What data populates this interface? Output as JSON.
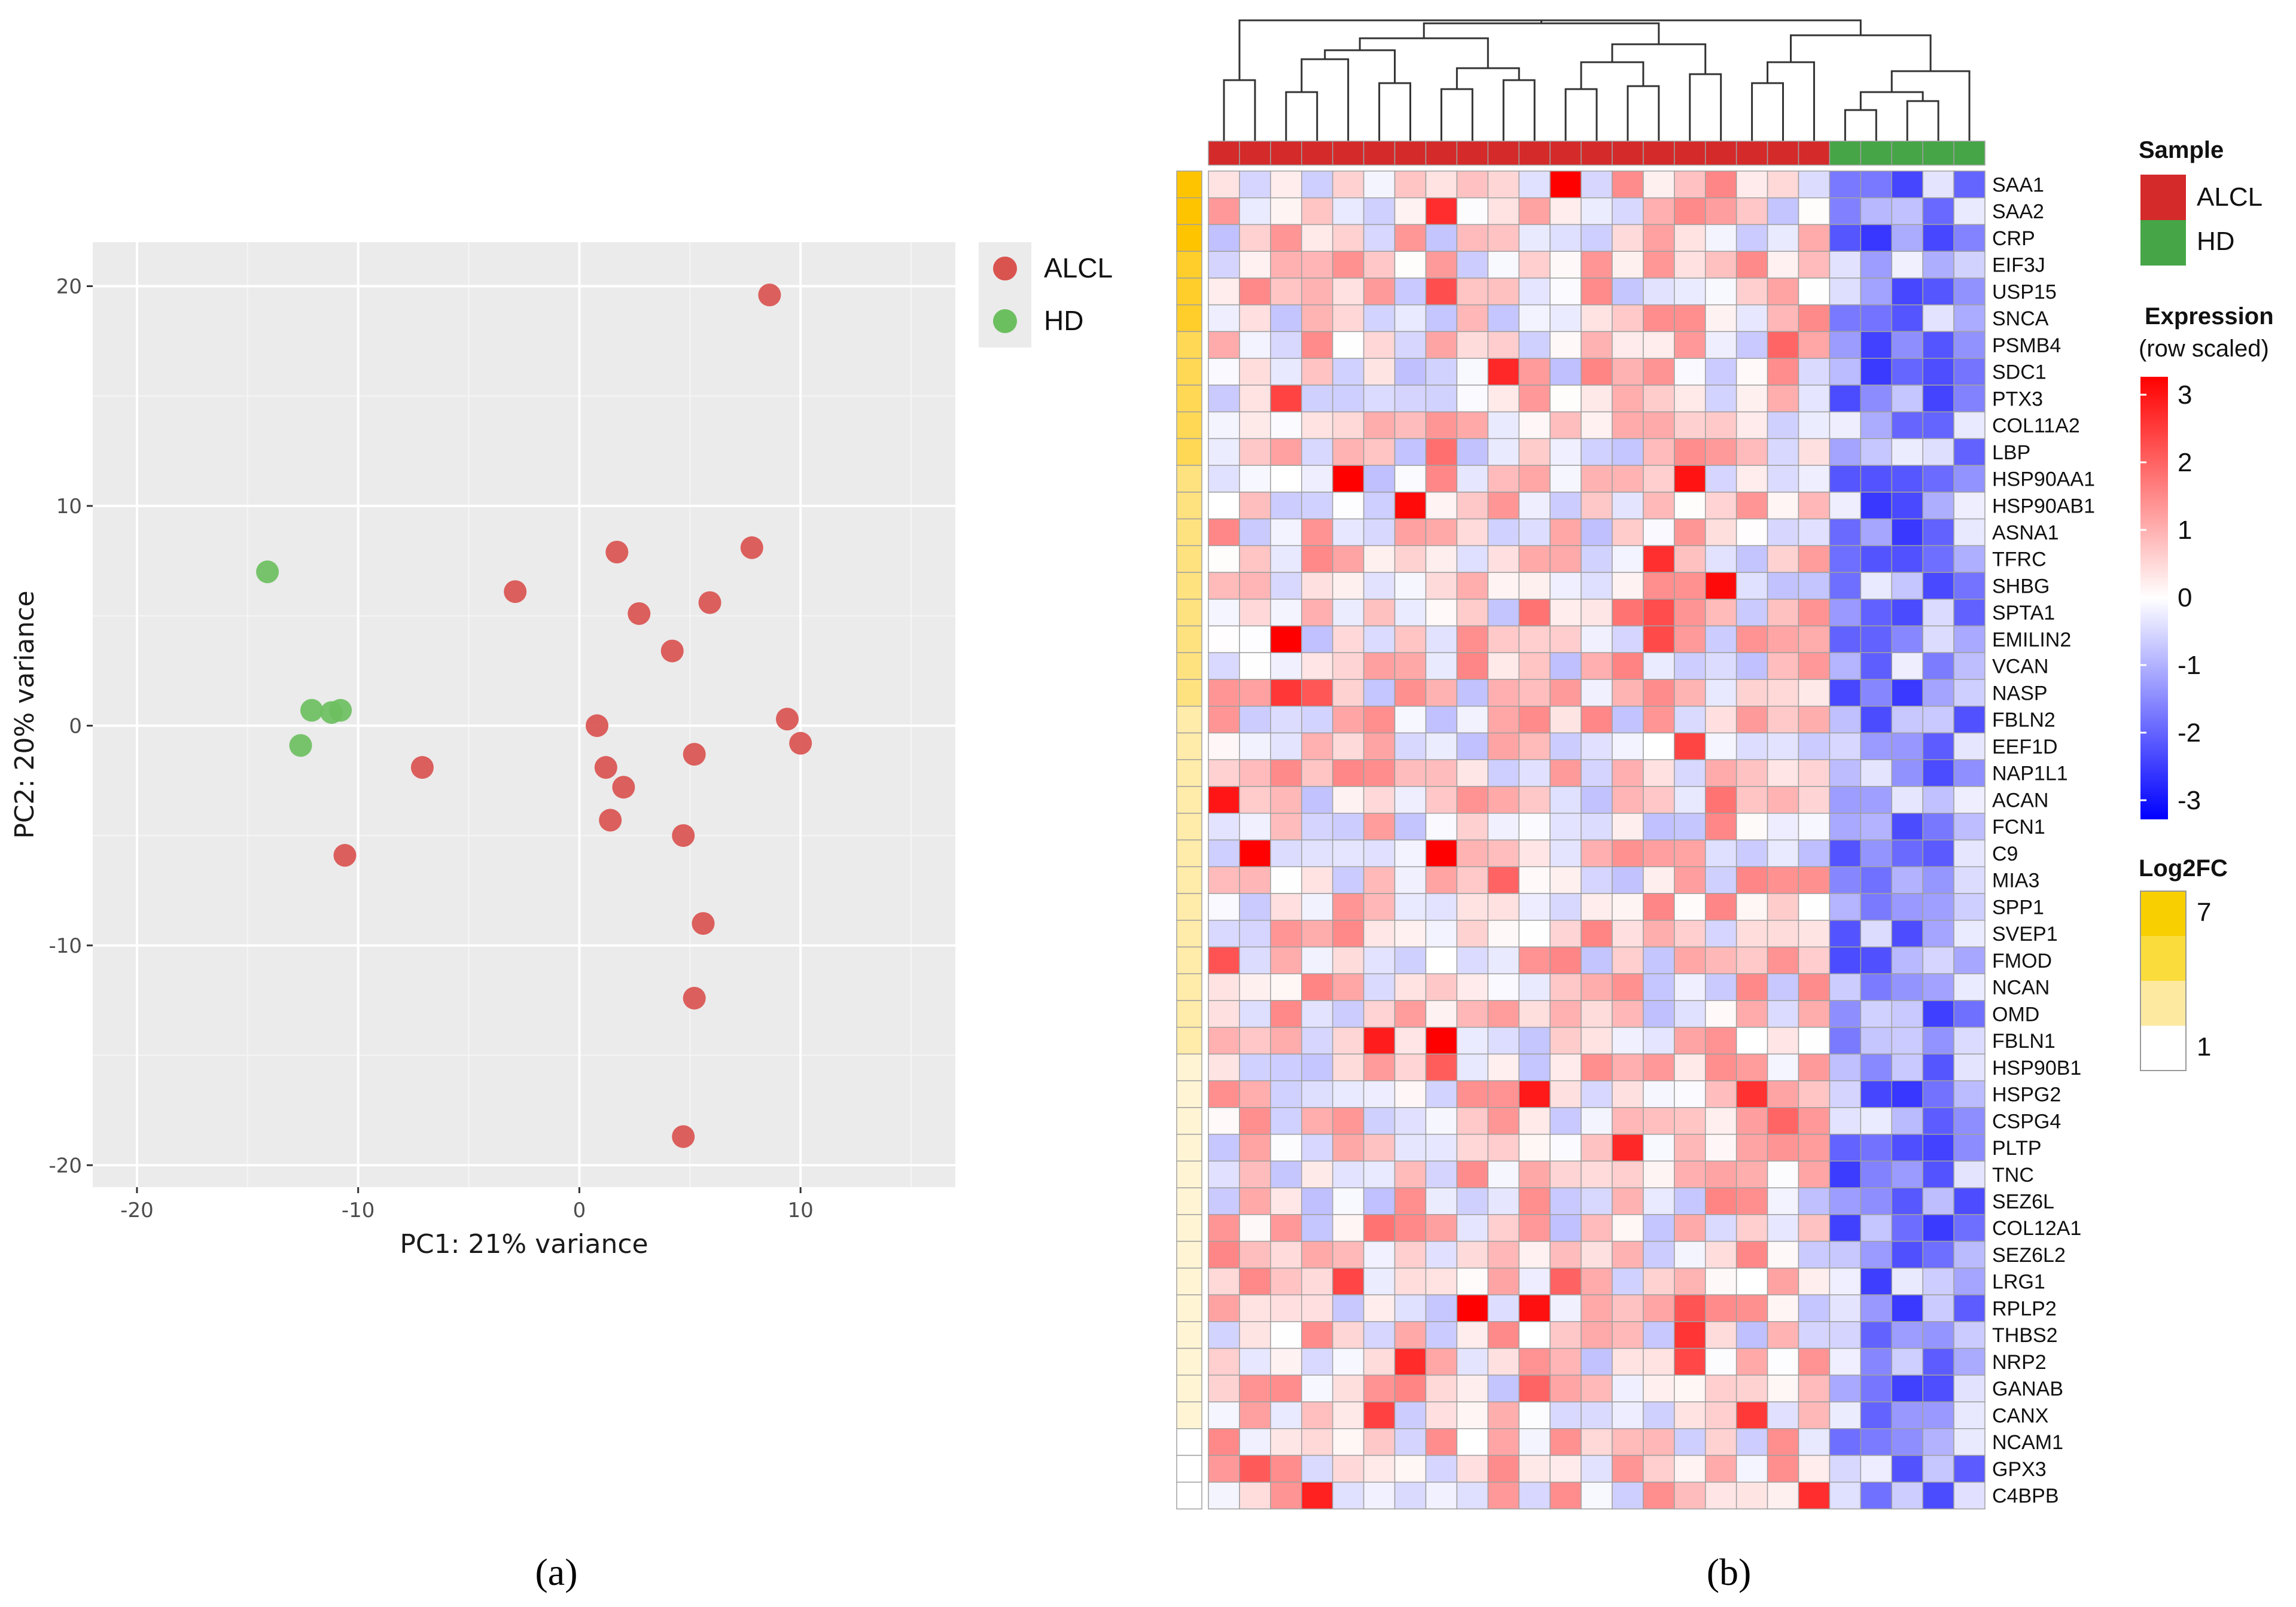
{
  "panels": {
    "a": "(a)",
    "b": "(b)"
  },
  "chart_data": [
    {
      "type": "scatter",
      "xlabel": "PC1: 21% variance",
      "ylabel": "PC2: 20% variance",
      "xlim": [
        -22,
        17
      ],
      "ylim": [
        -21,
        22
      ],
      "xticks": [
        -20,
        -10,
        0,
        10
      ],
      "xtick_labels": [
        "-20",
        "-10",
        "0",
        "10"
      ],
      "yticks": [
        -20,
        -10,
        0,
        10,
        20
      ],
      "ytick_labels": [
        "-20",
        "-10",
        "0",
        "10",
        "20"
      ],
      "grid": true,
      "legend_position": "right",
      "series": [
        {
          "name": "ALCL",
          "color": "#d9534f",
          "points": [
            [
              8.6,
              19.6
            ],
            [
              7.8,
              8.1
            ],
            [
              1.7,
              7.9
            ],
            [
              -2.9,
              6.1
            ],
            [
              5.9,
              5.6
            ],
            [
              2.7,
              5.1
            ],
            [
              4.2,
              3.4
            ],
            [
              9.4,
              0.3
            ],
            [
              0.8,
              0.0
            ],
            [
              10.0,
              -0.8
            ],
            [
              5.2,
              -1.3
            ],
            [
              1.2,
              -1.9
            ],
            [
              -7.1,
              -1.9
            ],
            [
              2.0,
              -2.8
            ],
            [
              1.4,
              -4.3
            ],
            [
              4.7,
              -5.0
            ],
            [
              -10.6,
              -5.9
            ],
            [
              5.6,
              -9.0
            ],
            [
              5.2,
              -12.4
            ],
            [
              4.7,
              -18.7
            ]
          ]
        },
        {
          "name": "HD",
          "color": "#6cbf5f",
          "points": [
            [
              -14.1,
              7.0
            ],
            [
              -12.1,
              0.7
            ],
            [
              -11.2,
              0.6
            ],
            [
              -10.8,
              0.7
            ],
            [
              -12.6,
              -0.9
            ]
          ]
        }
      ]
    },
    {
      "type": "heatmap",
      "genes": [
        "SAA1",
        "SAA2",
        "CRP",
        "EIF3J",
        "USP15",
        "SNCA",
        "PSMB4",
        "SDC1",
        "PTX3",
        "COL11A2",
        "LBP",
        "HSP90AA1",
        "HSP90AB1",
        "ASNA1",
        "TFRC",
        "SHBG",
        "SPTA1",
        "EMILIN2",
        "VCAN",
        "NASP",
        "FBLN2",
        "EEF1D",
        "NAP1L1",
        "ACAN",
        "FCN1",
        "C9",
        "MIA3",
        "SPP1",
        "SVEP1",
        "FMOD",
        "NCAN",
        "OMD",
        "FBLN1",
        "HSP90B1",
        "HSPG2",
        "CSPG4",
        "PLTP",
        "TNC",
        "SEZ6L",
        "COL12A1",
        "SEZ6L2",
        "LRG1",
        "RPLP2",
        "THBS2",
        "NRP2",
        "GANAB",
        "CANX",
        "NCAM1",
        "GPX3",
        "C4BPB"
      ],
      "samples": [
        "ALCL",
        "ALCL",
        "ALCL",
        "ALCL",
        "ALCL",
        "ALCL",
        "ALCL",
        "ALCL",
        "ALCL",
        "ALCL",
        "ALCL",
        "ALCL",
        "ALCL",
        "ALCL",
        "ALCL",
        "ALCL",
        "ALCL",
        "ALCL",
        "ALCL",
        "ALCL",
        "HD",
        "HD",
        "HD",
        "HD",
        "HD"
      ],
      "sample_colors": {
        "ALCL": "#d42a2a",
        "HD": "#46a546"
      },
      "log2fc": [
        7,
        7,
        7,
        6,
        6,
        6,
        5,
        5,
        5,
        5,
        5,
        4,
        4,
        4,
        4,
        4,
        4,
        4,
        4,
        4,
        3,
        3,
        3,
        3,
        3,
        3,
        3,
        3,
        3,
        3,
        3,
        3,
        3,
        2,
        2,
        2,
        2,
        2,
        2,
        2,
        2,
        2,
        2,
        2,
        2,
        2,
        2,
        1,
        1,
        1
      ],
      "legend": {
        "sample_title": "Sample",
        "sample_items": [
          "ALCL",
          "HD"
        ],
        "expression_title": "Expression",
        "expression_subtitle": "(row scaled)",
        "expression_ticks": [
          "3",
          "2",
          "1",
          "0",
          "-1",
          "-2",
          "-3"
        ],
        "log2fc_title": "Log2FC",
        "log2fc_ticks": [
          "7",
          "1"
        ]
      },
      "colors": {
        "high": "#ff0000",
        "mid": "#ffffff",
        "low": "#0000ff",
        "fc_high": "#f5c400",
        "fc_mid": "#fce588",
        "fc_low": "#ffffff"
      }
    }
  ]
}
